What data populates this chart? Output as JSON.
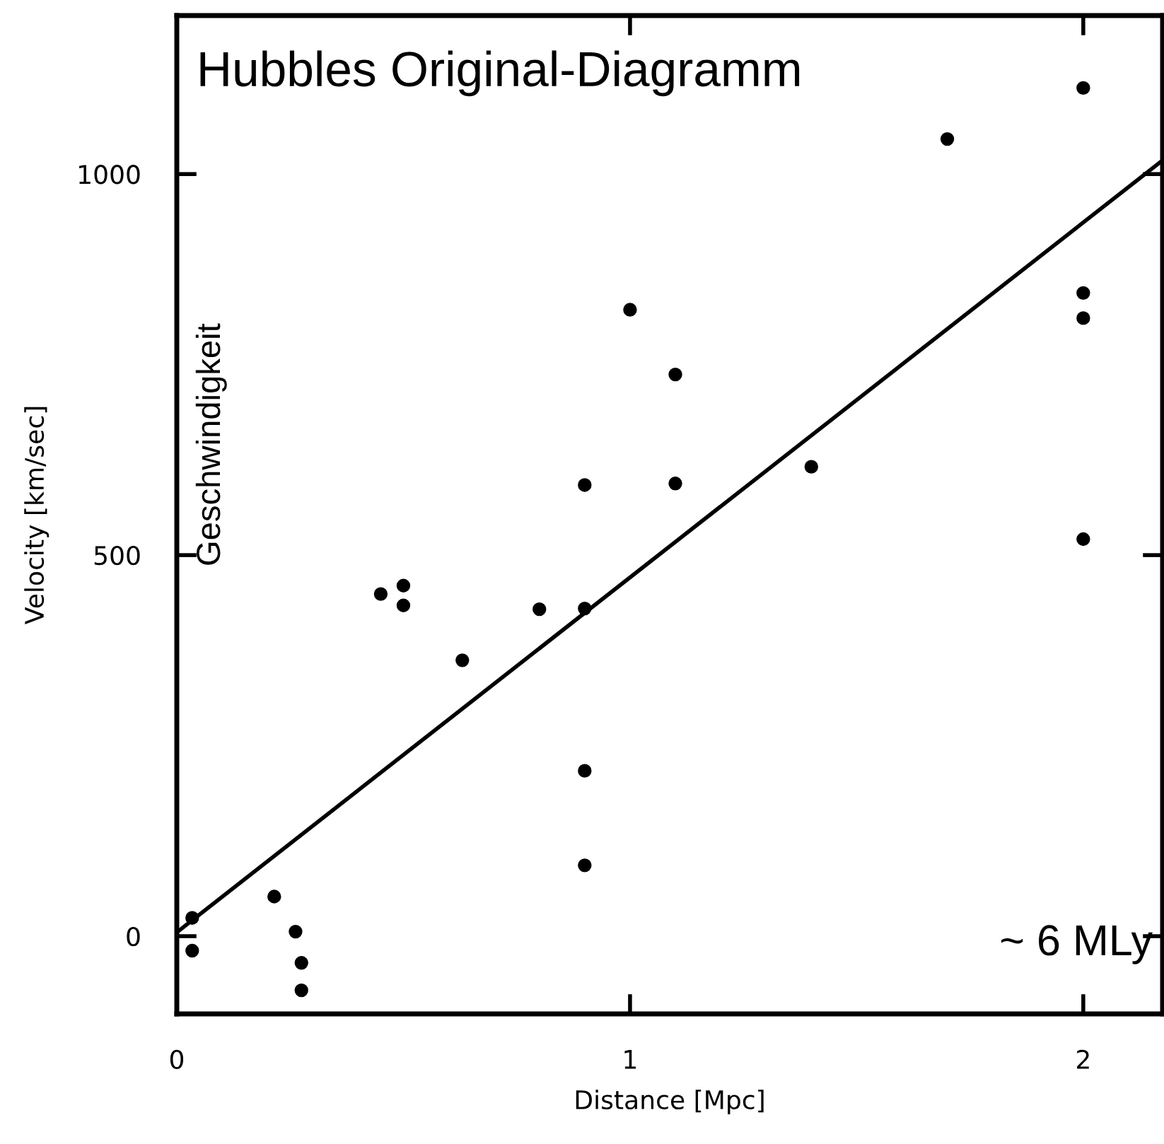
{
  "chart_data": {
    "type": "scatter",
    "title": "Hubbles Original-Diagramm",
    "xlabel": "Distance [Mpc]",
    "ylabel": "Velocity [km/sec]",
    "annotations": [
      "Geschwindigkeit",
      "~ 6 MLy"
    ],
    "xlim": [
      0,
      2.175
    ],
    "ylim": [
      -102,
      1208
    ],
    "xticks": [
      0,
      1,
      2
    ],
    "yticks": [
      0,
      500,
      1000
    ],
    "grid": false,
    "legend": false,
    "series": [
      {
        "marker": "circle",
        "color": "#000000",
        "x": [
          0.034,
          0.034,
          0.215,
          0.262,
          0.275,
          0.275,
          0.45,
          0.5,
          0.5,
          0.63,
          0.8,
          0.9,
          0.9,
          0.9,
          0.9,
          1.0,
          1.1,
          1.1,
          1.4,
          1.7,
          2.0,
          2.0,
          2.0,
          2.0
        ],
        "values": [
          24,
          -19,
          52,
          6,
          -35,
          -71,
          449,
          460,
          434,
          362,
          429,
          592,
          430,
          217,
          93,
          822,
          737,
          594,
          616,
          1046,
          1113,
          844,
          811,
          521
        ]
      },
      {
        "type": "line",
        "color": "#000000",
        "line_style": "solid",
        "x": [
          0,
          2.175
        ],
        "values": [
          5,
          1018
        ]
      }
    ]
  }
}
